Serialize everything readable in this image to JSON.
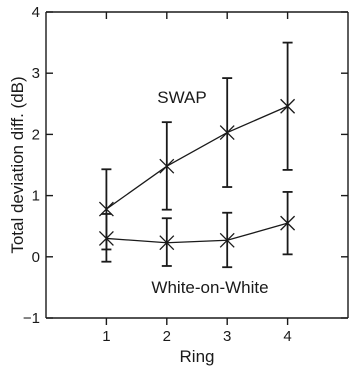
{
  "chart_data": {
    "type": "line",
    "title": "",
    "xlabel": "Ring",
    "ylabel": "Total deviation diff. (dB)",
    "x": [
      1,
      2,
      3,
      4
    ],
    "xlim": [
      0,
      5
    ],
    "ylim": [
      -1,
      4
    ],
    "xticks": [
      1,
      2,
      3,
      4
    ],
    "yticks": [
      -1,
      0,
      1,
      2,
      3,
      4
    ],
    "grid": false,
    "legend": "none",
    "series": [
      {
        "name": "SWAP",
        "values": [
          0.78,
          1.48,
          2.03,
          2.46
        ],
        "err_low": [
          0.12,
          0.77,
          1.14,
          1.42
        ],
        "err_high": [
          1.43,
          2.2,
          2.92,
          3.5
        ],
        "marker": "x"
      },
      {
        "name": "White-on-White",
        "values": [
          0.3,
          0.23,
          0.27,
          0.55
        ],
        "err_low": [
          -0.08,
          -0.15,
          -0.17,
          0.04
        ],
        "err_high": [
          0.7,
          0.63,
          0.72,
          1.06
        ],
        "marker": "x"
      }
    ],
    "annotations": [
      "SWAP",
      "White-on-White"
    ]
  }
}
